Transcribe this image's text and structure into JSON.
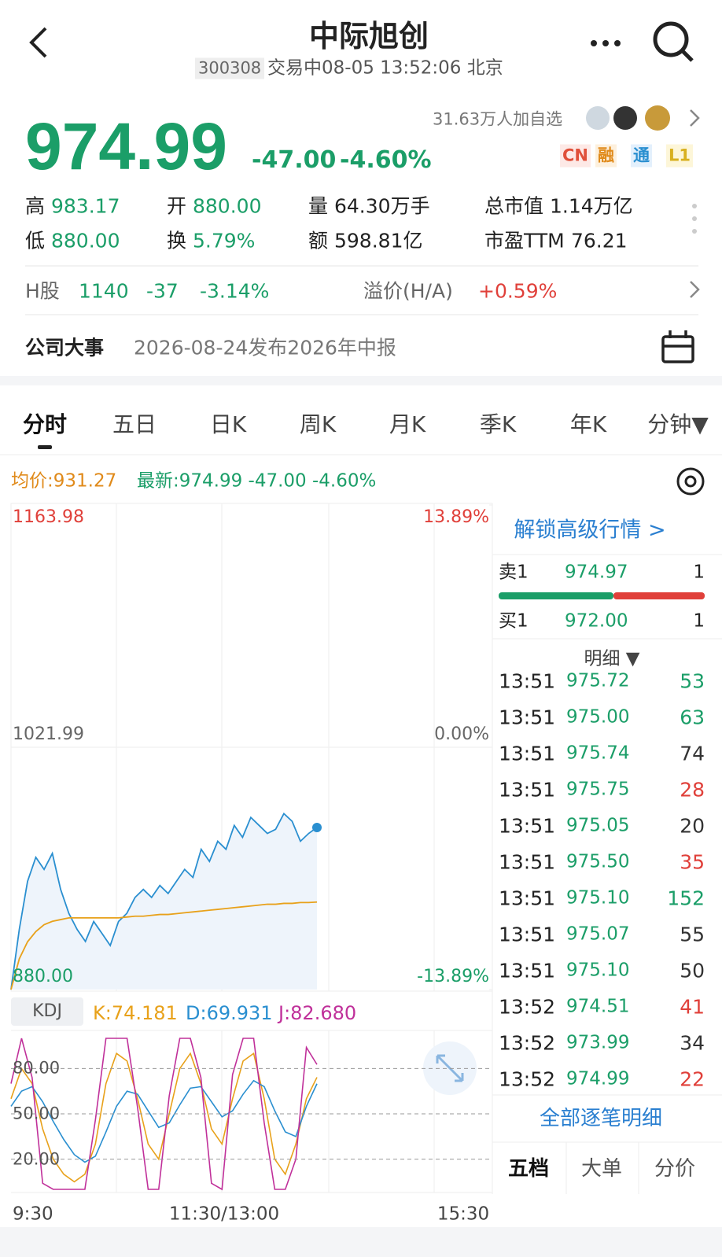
{
  "header": {
    "title": "中际旭创",
    "code": "300308",
    "status": "交易中08-05 13:52:06 北京"
  },
  "quote": {
    "price": "974.99",
    "change": "-47.00",
    "change_pct": "-4.60%",
    "watchers": "31.63万人加自选",
    "badges": [
      "CN",
      "融",
      "通",
      "L1"
    ]
  },
  "stats": [
    [
      {
        "label": "高",
        "value": "983.17"
      },
      {
        "label": "开",
        "value": "880.00"
      },
      {
        "label": "量",
        "value": "64.30万手"
      },
      {
        "label": "总市值",
        "value": "1.14万亿"
      }
    ],
    [
      {
        "label": "低",
        "value": "880.00"
      },
      {
        "label": "换",
        "value": "5.79%"
      },
      {
        "label": "额",
        "value": "598.81亿"
      },
      {
        "label": "市盈TTM",
        "value": "76.21"
      }
    ]
  ],
  "h_share": {
    "label": "H股",
    "price": "1140",
    "change": "-37",
    "change_pct": "-3.14%",
    "premium_label": "溢价(H/A)",
    "premium": "+0.59%"
  },
  "event": {
    "label": "公司大事",
    "text": "2026-08-24发布2026年中报"
  },
  "tabs": [
    "分时",
    "五日",
    "日K",
    "周K",
    "月K",
    "季K",
    "年K",
    "分钟▼"
  ],
  "summary": {
    "avg": "均价:931.27",
    "latest": "最新:974.99 -47.00 -4.60%"
  },
  "chart": {
    "ylim": [
      880,
      1163.98
    ],
    "yticks": [
      1163.98,
      1021.99,
      {
        "value": 880,
        "label": "880.00"
      }
    ],
    "y2lim": [
      -13.89,
      13.89
    ],
    "y2ticks": [
      {
        "value": 13.89,
        "label": "13.89%"
      },
      {
        "value": 0,
        "label": "0.00%"
      },
      {
        "value": -13.89,
        "label": "-13.89%"
      }
    ],
    "xticks": [
      "9:30",
      "11:30/13:00",
      "15:30"
    ],
    "price_line": {
      "color": "#2a8fd0",
      "values": [
        880,
        915.2,
        943.4,
        957.5,
        950.4,
        959.8,
        938.7,
        924.6,
        915.2,
        908.2,
        919.9,
        912.9,
        905.8,
        919.9,
        924.6,
        934.0,
        938.7,
        934.0,
        941.0,
        936.3,
        943.4,
        950.4,
        945.7,
        962.2,
        955.1,
        966.9,
        962.2,
        976.2,
        969.2,
        980.9,
        976.2,
        971.5,
        973.9,
        983.1,
        978.6,
        966.9,
        971.5,
        974.99
      ]
    },
    "avg_line": {
      "color": "#e8a11a",
      "values": [
        880,
        898,
        908,
        914,
        918,
        920,
        921,
        922,
        922,
        922,
        922,
        922,
        922,
        922,
        922.5,
        923,
        923,
        923.5,
        924,
        924,
        924.5,
        925,
        925.5,
        926,
        926.5,
        927,
        927.5,
        928,
        928.5,
        929,
        929.5,
        930,
        930,
        930.5,
        930.5,
        931,
        931,
        931.27
      ]
    }
  },
  "kdj": {
    "label": "KDJ",
    "ylim": [
      0,
      100
    ],
    "yticks": [
      {
        "value": 80,
        "label": "80.00"
      },
      {
        "value": 50,
        "label": "50.00"
      },
      {
        "value": 20,
        "label": "20.00"
      }
    ],
    "series": [
      {
        "name": "K:74.181",
        "color": "#e8a11a",
        "values": [
          60,
          80,
          70,
          40,
          20,
          10,
          5,
          10,
          30,
          70,
          90,
          85,
          60,
          30,
          20,
          50,
          80,
          90,
          70,
          40,
          30,
          60,
          85,
          90,
          60,
          20,
          10,
          30,
          60,
          74.181
        ]
      },
      {
        "name": "D:69.931",
        "color": "#2a8fd0",
        "values": [
          55,
          65,
          68,
          58,
          45,
          33,
          23,
          18,
          22,
          38,
          55,
          65,
          63,
          52,
          41,
          44,
          56,
          67,
          68,
          58,
          48,
          52,
          63,
          72,
          68,
          52,
          38,
          35,
          55,
          69.931
        ]
      },
      {
        "name": "J:82.680",
        "color": "#c0309a",
        "values": [
          70,
          100,
          74,
          4,
          0,
          0,
          0,
          0,
          46,
          100,
          100,
          100,
          54,
          0,
          0,
          62,
          100,
          100,
          74,
          4,
          0,
          76,
          100,
          100,
          44,
          0,
          0,
          20,
          94,
          82.68
        ]
      }
    ]
  },
  "order_book": {
    "unlock": "解锁高级行情 >",
    "sell": {
      "label": "卖1",
      "price": "974.97",
      "volume": "1"
    },
    "buy": {
      "label": "买1",
      "price": "972.00",
      "volume": "1"
    },
    "detail": "明细 ▼",
    "trades": [
      {
        "time": "13:51",
        "price": "975.72",
        "volume": "53",
        "color": "#1b9e68"
      },
      {
        "time": "13:51",
        "price": "975.00",
        "volume": "63",
        "color": "#1b9e68"
      },
      {
        "time": "13:51",
        "price": "975.74",
        "volume": "74",
        "color": "#333333"
      },
      {
        "time": "13:51",
        "price": "975.75",
        "volume": "28",
        "color": "#e0403a"
      },
      {
        "time": "13:51",
        "price": "975.05",
        "volume": "20",
        "color": "#333333"
      },
      {
        "time": "13:51",
        "price": "975.50",
        "volume": "35",
        "color": "#e0403a"
      },
      {
        "time": "13:51",
        "price": "975.10",
        "volume": "152",
        "color": "#1b9e68"
      },
      {
        "time": "13:51",
        "price": "975.07",
        "volume": "55",
        "color": "#333333"
      },
      {
        "time": "13:51",
        "price": "975.10",
        "volume": "50",
        "color": "#333333"
      },
      {
        "time": "13:52",
        "price": "974.51",
        "volume": "41",
        "color": "#e0403a"
      },
      {
        "time": "13:52",
        "price": "973.99",
        "volume": "34",
        "color": "#333333"
      },
      {
        "time": "13:52",
        "price": "974.99",
        "volume": "22",
        "color": "#e0403a"
      }
    ],
    "all": "全部逐笔明细",
    "tabs": [
      "五档",
      "大单",
      "分价"
    ]
  }
}
